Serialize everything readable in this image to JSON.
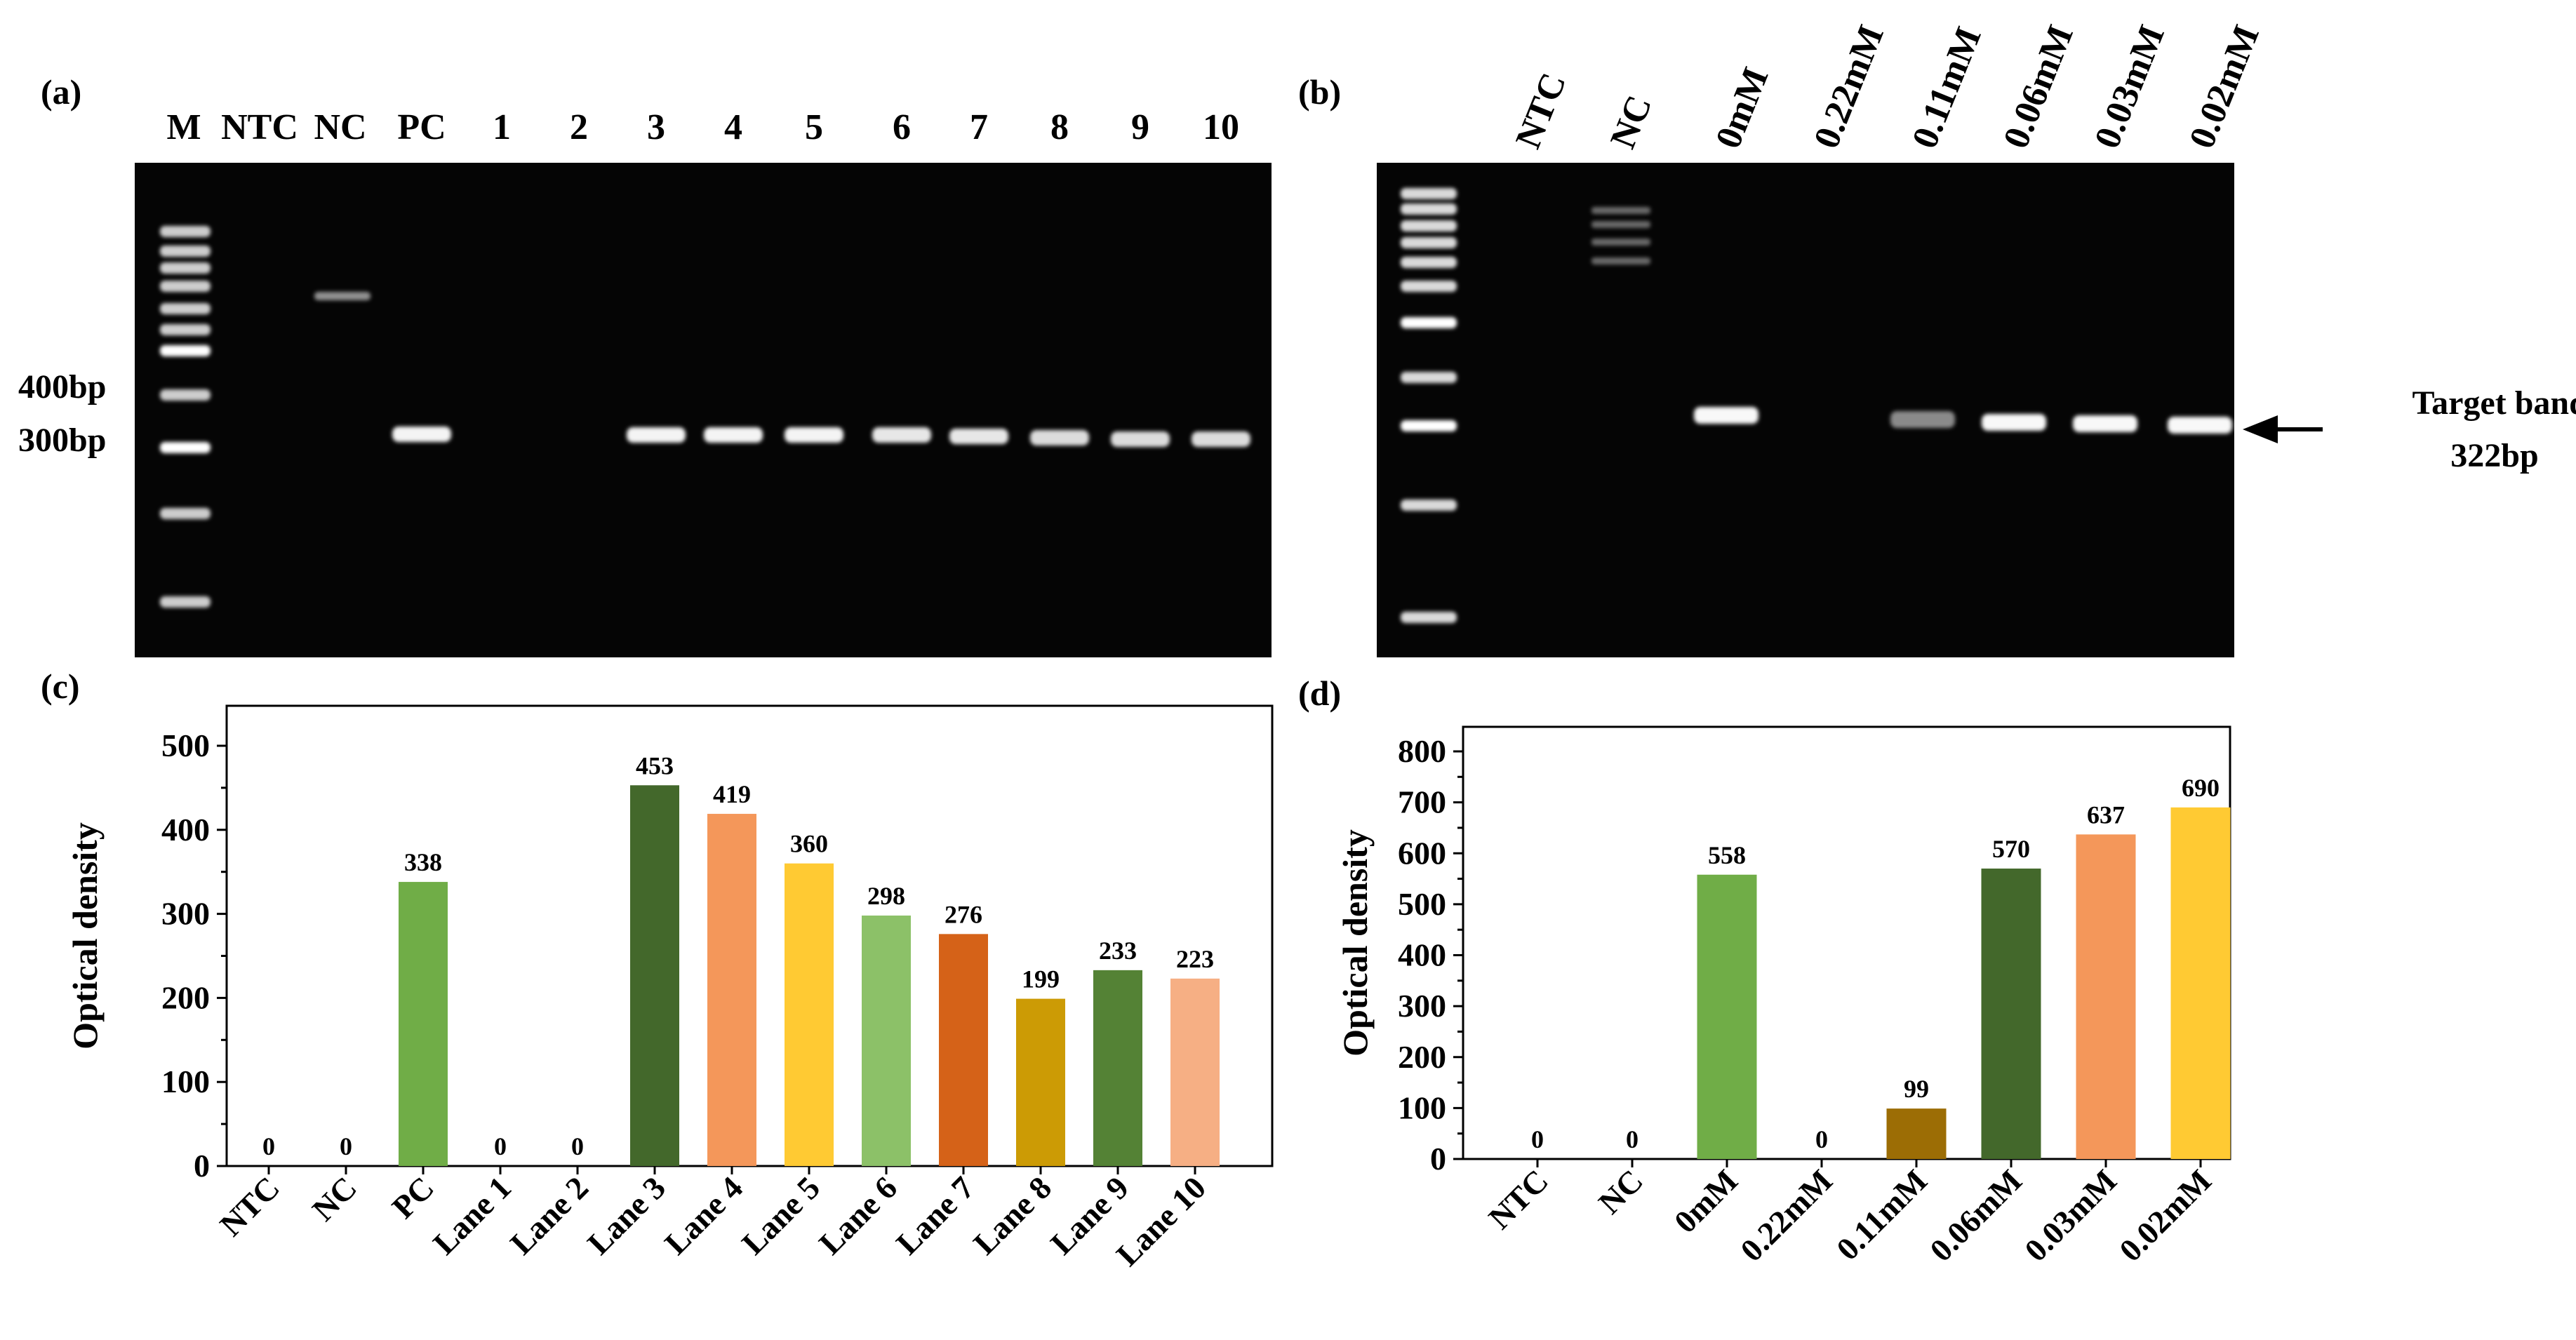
{
  "panels": {
    "a": "(a)",
    "b": "(b)",
    "c": "(c)",
    "d": "(d)"
  },
  "gel_a": {
    "lanes": [
      "M",
      "NTC",
      "NC",
      "PC",
      "1",
      "2",
      "3",
      "4",
      "5",
      "6",
      "7",
      "8",
      "9",
      "10"
    ],
    "markers": [
      "400bp",
      "300bp"
    ]
  },
  "gel_b": {
    "lanes": [
      "NTC",
      "NC",
      "0mM",
      "0.22mM",
      "0.11mM",
      "0.06mM",
      "0.03mM",
      "0.02mM"
    ],
    "annotation_line1": "Target bands:",
    "annotation_line2": "322bp"
  },
  "chart_data": [
    {
      "type": "bar",
      "title": "",
      "xlabel": "",
      "ylabel": "Optical density",
      "ylim": [
        0,
        500
      ],
      "yticks": [
        "0",
        "100",
        "200",
        "300",
        "400",
        "500"
      ],
      "categories": [
        "NTC",
        "NC",
        "PC",
        "Lane 1",
        "Lane 2",
        "Lane 3",
        "Lane 4",
        "Lane 5",
        "Lane 6",
        "Lane 7",
        "Lane 8",
        "Lane 9",
        "Lane 10"
      ],
      "values": [
        0,
        0,
        338,
        0,
        0,
        453,
        419,
        360,
        298,
        276,
        199,
        233,
        223
      ],
      "value_labels": [
        "0",
        "0",
        "338",
        "0",
        "0",
        "453",
        "419",
        "360",
        "298",
        "276",
        "199",
        "233",
        "223"
      ],
      "colors": [
        "#70ad47",
        "#70ad47",
        "#70ad47",
        "#70ad47",
        "#70ad47",
        "#43682b",
        "#f4975a",
        "#ffca33",
        "#8cc168",
        "#d56218",
        "#cc9b05",
        "#548235",
        "#f6af84"
      ],
      "grid": false,
      "legend": "none"
    },
    {
      "type": "bar",
      "title": "",
      "xlabel": "",
      "ylabel": "Optical density",
      "ylim": [
        0,
        800
      ],
      "yticks": [
        "0",
        "100",
        "200",
        "300",
        "400",
        "500",
        "600",
        "700",
        "800"
      ],
      "categories": [
        "NTC",
        "NC",
        "0mM",
        "0.22mM",
        "0.11mM",
        "0.06mM",
        "0.03mM",
        "0.02mM"
      ],
      "values": [
        0,
        0,
        558,
        0,
        99,
        570,
        637,
        690
      ],
      "value_labels": [
        "0",
        "0",
        "558",
        "0",
        "99",
        "570",
        "637",
        "690"
      ],
      "colors": [
        "#70ad47",
        "#70ad47",
        "#70ad47",
        "#70ad47",
        "#9c6d05",
        "#43682b",
        "#f4975a",
        "#ffca33"
      ],
      "grid": false,
      "legend": "none"
    }
  ]
}
